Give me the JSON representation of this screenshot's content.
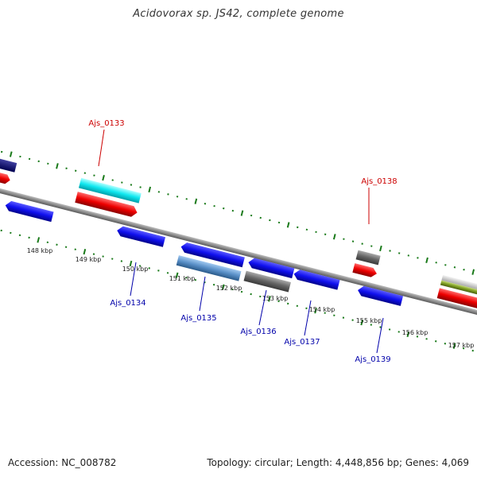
{
  "title": "Acidovorax sp. JS42, complete genome",
  "footer": {
    "accession": "Accession: NC_008782",
    "summary": "Topology: circular; Length: 4,448,856 bp; Genes: 4,069"
  },
  "colors": {
    "backbone": "#888888",
    "tick": "#1a7a1a",
    "forward_label": "#cc0000",
    "reverse_label": "#0000aa"
  },
  "ticks": [
    "148 kbp",
    "149 kbp",
    "150 kbp",
    "151 kbp",
    "152 kbp",
    "153 kbp",
    "154 kbp",
    "155 kbp",
    "156 kbp",
    "157 kbp"
  ],
  "gene_labels": [
    "Ajs_0133",
    "Ajs_0134",
    "Ajs_0135",
    "Ajs_0136",
    "Ajs_0137",
    "Ajs_0138",
    "Ajs_0139"
  ]
}
